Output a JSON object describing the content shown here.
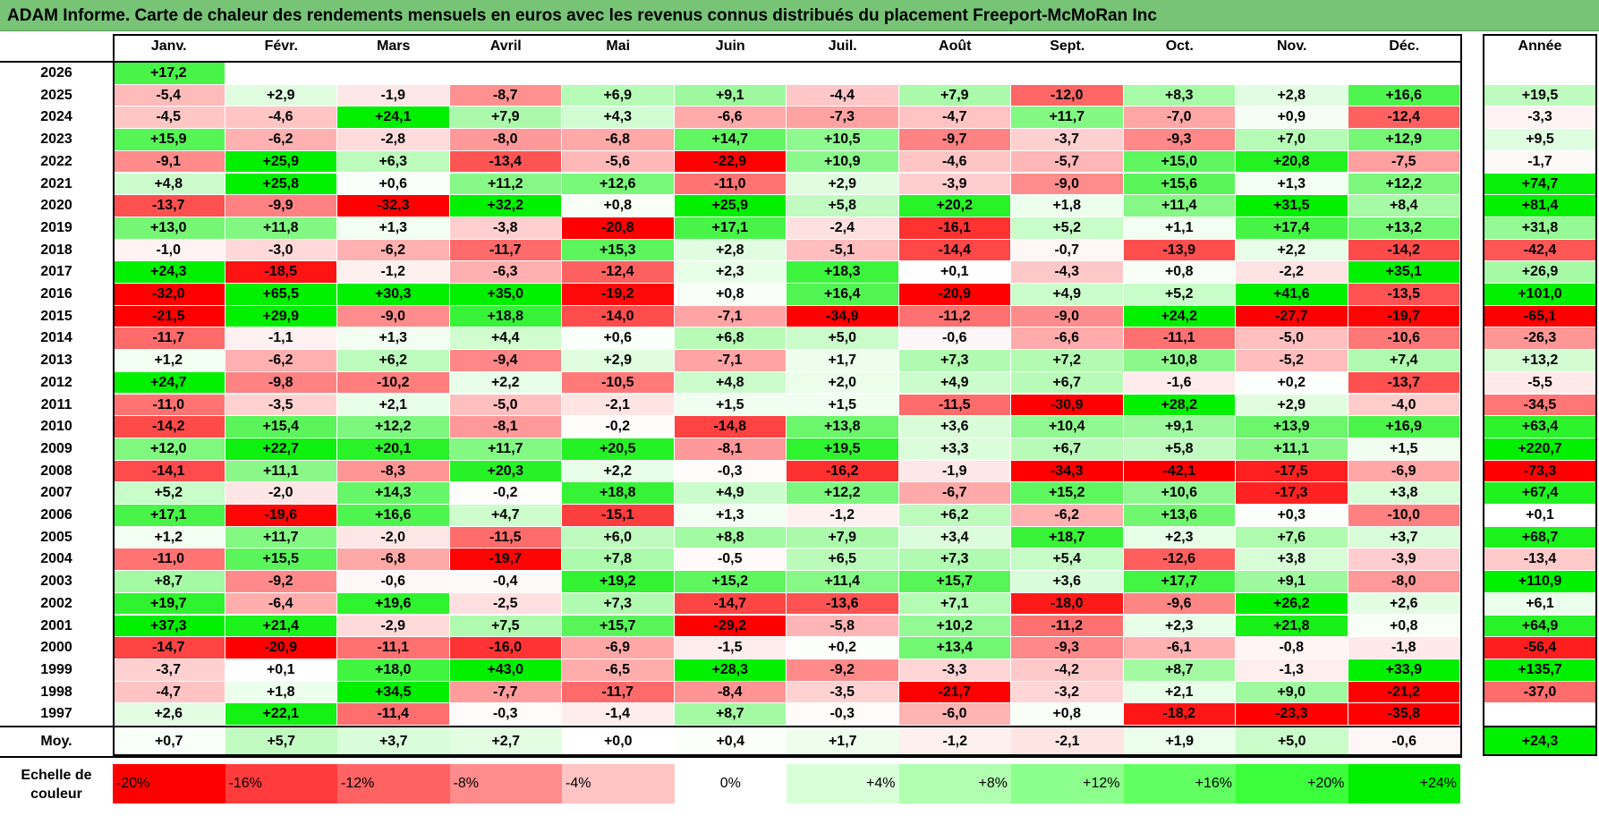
{
  "title": "ADAM Informe. Carte de chaleur des rendements mensuels en euros avec les revenus connus distribués du placement Freeport-McMoRan Inc",
  "chart_data": {
    "type": "heatmap",
    "title": "ADAM Informe. Carte de chaleur des rendements mensuels en euros avec les revenus connus distribués du placement Freeport-McMoRan Inc",
    "columns": [
      "Janv.",
      "Févr.",
      "Mars",
      "Avril",
      "Mai",
      "Juin",
      "Juil.",
      "Août",
      "Sept.",
      "Oct.",
      "Nov.",
      "Déc."
    ],
    "year_column_label": "Année",
    "rows": [
      {
        "year": "2026",
        "months": [
          "+17,2",
          "",
          "",
          "",
          "",
          "",
          "",
          "",
          "",
          "",
          "",
          ""
        ],
        "annual": ""
      },
      {
        "year": "2025",
        "months": [
          "-5,4",
          "+2,9",
          "-1,9",
          "-8,7",
          "+6,9",
          "+9,1",
          "-4,4",
          "+7,9",
          "-12,0",
          "+8,3",
          "+2,8",
          "+16,6"
        ],
        "annual": "+19,5"
      },
      {
        "year": "2024",
        "months": [
          "-4,5",
          "-4,6",
          "+24,1",
          "+7,9",
          "+4,3",
          "-6,6",
          "-7,3",
          "-4,7",
          "+11,7",
          "-7,0",
          "+0,9",
          "-12,4"
        ],
        "annual": "-3,3"
      },
      {
        "year": "2023",
        "months": [
          "+15,9",
          "-6,2",
          "-2,8",
          "-8,0",
          "-6,8",
          "+14,7",
          "+10,5",
          "-9,7",
          "-3,7",
          "-9,3",
          "+7,0",
          "+12,9"
        ],
        "annual": "+9,5"
      },
      {
        "year": "2022",
        "months": [
          "-9,1",
          "+25,9",
          "+6,3",
          "-13,4",
          "-5,6",
          "-22,9",
          "+10,9",
          "-4,6",
          "-5,7",
          "+15,0",
          "+20,8",
          "-7,5"
        ],
        "annual": "-1,7"
      },
      {
        "year": "2021",
        "months": [
          "+4,8",
          "+25,8",
          "+0,6",
          "+11,2",
          "+12,6",
          "-11,0",
          "+2,9",
          "-3,9",
          "-9,0",
          "+15,6",
          "+1,3",
          "+12,2"
        ],
        "annual": "+74,7"
      },
      {
        "year": "2020",
        "months": [
          "-13,7",
          "-9,9",
          "-32,3",
          "+32,2",
          "+0,8",
          "+25,9",
          "+5,8",
          "+20,2",
          "+1,8",
          "+11,4",
          "+31,5",
          "+8,4"
        ],
        "annual": "+81,4"
      },
      {
        "year": "2019",
        "months": [
          "+13,0",
          "+11,8",
          "+1,3",
          "-3,8",
          "-20,8",
          "+17,1",
          "-2,4",
          "-16,1",
          "+5,2",
          "+1,1",
          "+17,4",
          "+13,2"
        ],
        "annual": "+31,8"
      },
      {
        "year": "2018",
        "months": [
          "-1,0",
          "-3,0",
          "-6,2",
          "-11,7",
          "+15,3",
          "+2,8",
          "-5,1",
          "-14,4",
          "-0,7",
          "-13,9",
          "+2,2",
          "-14,2"
        ],
        "annual": "-42,4"
      },
      {
        "year": "2017",
        "months": [
          "+24,3",
          "-18,5",
          "-1,2",
          "-6,3",
          "-12,4",
          "+2,3",
          "+18,3",
          "+0,1",
          "-4,3",
          "+0,8",
          "-2,2",
          "+35,1"
        ],
        "annual": "+26,9"
      },
      {
        "year": "2016",
        "months": [
          "-32,0",
          "+65,5",
          "+30,3",
          "+35,0",
          "-19,2",
          "+0,8",
          "+16,4",
          "-20,9",
          "+4,9",
          "+5,2",
          "+41,6",
          "-13,5"
        ],
        "annual": "+101,0"
      },
      {
        "year": "2015",
        "months": [
          "-21,5",
          "+29,9",
          "-9,0",
          "+18,8",
          "-14,0",
          "-7,1",
          "-34,9",
          "-11,2",
          "-9,0",
          "+24,2",
          "-27,7",
          "-19,7"
        ],
        "annual": "-65,1"
      },
      {
        "year": "2014",
        "months": [
          "-11,7",
          "-1,1",
          "+1,3",
          "+4,4",
          "+0,6",
          "+6,8",
          "+5,0",
          "-0,6",
          "-6,6",
          "-11,1",
          "-5,0",
          "-10,6"
        ],
        "annual": "-26,3"
      },
      {
        "year": "2013",
        "months": [
          "+1,2",
          "-6,2",
          "+6,2",
          "-9,4",
          "+2,9",
          "-7,1",
          "+1,7",
          "+7,3",
          "+7,2",
          "+10,8",
          "-5,2",
          "+7,4"
        ],
        "annual": "+13,2"
      },
      {
        "year": "2012",
        "months": [
          "+24,7",
          "-9,8",
          "-10,2",
          "+2,2",
          "-10,5",
          "+4,8",
          "+2,0",
          "+4,9",
          "+6,7",
          "-1,6",
          "+0,2",
          "-13,7"
        ],
        "annual": "-5,5"
      },
      {
        "year": "2011",
        "months": [
          "-11,0",
          "-3,5",
          "+2,1",
          "-5,0",
          "-2,1",
          "+1,5",
          "+1,5",
          "-11,5",
          "-30,9",
          "+28,2",
          "+2,9",
          "-4,0"
        ],
        "annual": "-34,5"
      },
      {
        "year": "2010",
        "months": [
          "-14,2",
          "+15,4",
          "+12,2",
          "-8,1",
          "-0,2",
          "-14,8",
          "+13,8",
          "+3,6",
          "+10,4",
          "+9,1",
          "+13,9",
          "+16,9"
        ],
        "annual": "+63,4"
      },
      {
        "year": "2009",
        "months": [
          "+12,0",
          "+22,7",
          "+20,1",
          "+11,7",
          "+20,5",
          "-8,1",
          "+19,5",
          "+3,3",
          "+6,7",
          "+5,8",
          "+11,1",
          "+1,5"
        ],
        "annual": "+220,7"
      },
      {
        "year": "2008",
        "months": [
          "-14,1",
          "+11,1",
          "-8,3",
          "+20,3",
          "+2,2",
          "-0,3",
          "-16,2",
          "-1,9",
          "-34,3",
          "-42,1",
          "-17,5",
          "-6,9"
        ],
        "annual": "-73,3"
      },
      {
        "year": "2007",
        "months": [
          "+5,2",
          "-2,0",
          "+14,3",
          "-0,2",
          "+18,8",
          "+4,9",
          "+12,2",
          "-6,7",
          "+15,2",
          "+10,6",
          "-17,3",
          "+3,8"
        ],
        "annual": "+67,4"
      },
      {
        "year": "2006",
        "months": [
          "+17,1",
          "-19,6",
          "+16,6",
          "+4,7",
          "-15,1",
          "+1,3",
          "-1,2",
          "+6,2",
          "-6,2",
          "+13,6",
          "+0,3",
          "-10,0"
        ],
        "annual": "+0,1"
      },
      {
        "year": "2005",
        "months": [
          "+1,2",
          "+11,7",
          "-2,0",
          "-11,5",
          "+6,0",
          "+8,8",
          "+7,9",
          "+3,4",
          "+18,7",
          "+2,3",
          "+7,6",
          "+3,7"
        ],
        "annual": "+68,7"
      },
      {
        "year": "2004",
        "months": [
          "-11,0",
          "+15,5",
          "-6,8",
          "-19,7",
          "+7,8",
          "-0,5",
          "+6,5",
          "+7,3",
          "+5,4",
          "-12,6",
          "+3,8",
          "-3,9"
        ],
        "annual": "-13,4"
      },
      {
        "year": "2003",
        "months": [
          "+8,7",
          "-9,2",
          "-0,6",
          "-0,4",
          "+19,2",
          "+15,2",
          "+11,4",
          "+15,7",
          "+3,6",
          "+17,7",
          "+9,1",
          "-8,0"
        ],
        "annual": "+110,9"
      },
      {
        "year": "2002",
        "months": [
          "+19,7",
          "-6,4",
          "+19,6",
          "-2,5",
          "+7,3",
          "-14,7",
          "-13,6",
          "+7,1",
          "-18,0",
          "-9,6",
          "+26,2",
          "+2,6"
        ],
        "annual": "+6,1"
      },
      {
        "year": "2001",
        "months": [
          "+37,3",
          "+21,4",
          "-2,9",
          "+7,5",
          "+15,7",
          "-29,2",
          "-5,8",
          "+10,2",
          "-11,2",
          "+2,3",
          "+21,8",
          "+0,8"
        ],
        "annual": "+64,9"
      },
      {
        "year": "2000",
        "months": [
          "-14,7",
          "-20,9",
          "-11,1",
          "-16,0",
          "-6,9",
          "-1,5",
          "+0,2",
          "+13,4",
          "-9,3",
          "-6,1",
          "-0,8",
          "-1,8"
        ],
        "annual": "-56,4"
      },
      {
        "year": "1999",
        "months": [
          "-3,7",
          "+0,1",
          "+18,0",
          "+43,0",
          "-6,5",
          "+28,3",
          "-9,2",
          "-3,3",
          "-4,2",
          "+8,7",
          "-1,3",
          "+33,9"
        ],
        "annual": "+135,7"
      },
      {
        "year": "1998",
        "months": [
          "-4,7",
          "+1,8",
          "+34,5",
          "-7,7",
          "-11,7",
          "-8,4",
          "-3,5",
          "-21,7",
          "-3,2",
          "+2,1",
          "+9,0",
          "-21,2"
        ],
        "annual": "-37,0"
      },
      {
        "year": "1997",
        "months": [
          "+2,6",
          "+22,1",
          "-11,4",
          "-0,3",
          "-1,4",
          "+8,7",
          "-0,3",
          "-6,0",
          "+0,8",
          "-18,2",
          "-23,3",
          "-35,8"
        ],
        "annual": ""
      }
    ],
    "mean_label": "Moy.",
    "mean_values": [
      "+0,7",
      "+5,7",
      "+3,7",
      "+2,7",
      "+0,0",
      "+0,4",
      "+1,7",
      "-1,2",
      "-2,1",
      "+1,9",
      "+5,0",
      "-0,6"
    ],
    "mean_annual": "+24,3",
    "scale_label": "Echelle de couleur",
    "scale": [
      {
        "label": "-20%",
        "color": "#ff0000"
      },
      {
        "label": "-16%",
        "color": "#ff3b3b"
      },
      {
        "label": "-12%",
        "color": "#ff6262"
      },
      {
        "label": "-8%",
        "color": "#ff8c8c"
      },
      {
        "label": "-4%",
        "color": "#ffc4c4"
      },
      {
        "label": "0%",
        "color": "#ffffff"
      },
      {
        "label": "+4%",
        "color": "#d8ffd8"
      },
      {
        "label": "+8%",
        "color": "#b0ffb0"
      },
      {
        "label": "+12%",
        "color": "#8cff8c"
      },
      {
        "label": "+16%",
        "color": "#62ff62"
      },
      {
        "label": "+20%",
        "color": "#3bff3b"
      },
      {
        "label": "+24%",
        "color": "#00f000"
      }
    ]
  }
}
